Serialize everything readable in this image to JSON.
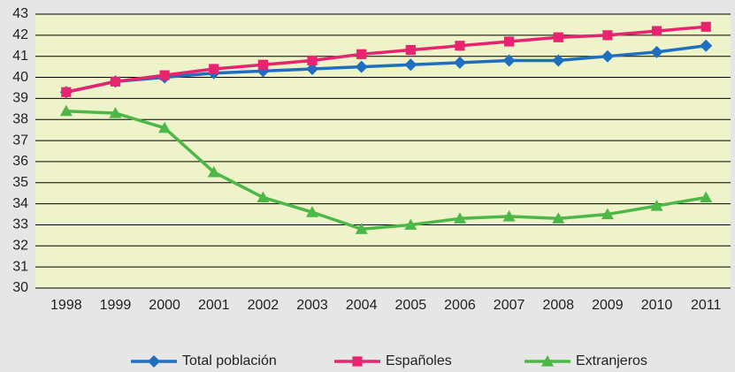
{
  "chart_data": {
    "type": "line",
    "categories": [
      "1998",
      "1999",
      "2000",
      "2001",
      "2002",
      "2003",
      "2004",
      "2005",
      "2006",
      "2007",
      "2008",
      "2009",
      "2010",
      "2011"
    ],
    "series": [
      {
        "name": "Total población",
        "color": "#1f6fc0",
        "marker": "diamond",
        "values": [
          39.3,
          39.8,
          40.0,
          40.2,
          40.3,
          40.4,
          40.5,
          40.6,
          40.7,
          40.8,
          40.8,
          41.0,
          41.2,
          41.5
        ]
      },
      {
        "name": "Españoles",
        "color": "#e8236f",
        "marker": "square",
        "values": [
          39.3,
          39.8,
          40.1,
          40.4,
          40.6,
          40.8,
          41.1,
          41.3,
          41.5,
          41.7,
          41.9,
          42.0,
          42.2,
          42.4
        ]
      },
      {
        "name": "Extranjeros",
        "color": "#4cb848",
        "marker": "triangle",
        "values": [
          38.4,
          38.3,
          37.6,
          35.5,
          34.3,
          33.6,
          32.8,
          33.0,
          33.3,
          33.4,
          33.3,
          33.5,
          33.9,
          34.3
        ]
      }
    ],
    "ylim": [
      30,
      43
    ],
    "yticks": [
      30,
      31,
      32,
      33,
      34,
      35,
      36,
      37,
      38,
      39,
      40,
      41,
      42,
      43
    ],
    "grid": true,
    "legend": "bottom"
  }
}
